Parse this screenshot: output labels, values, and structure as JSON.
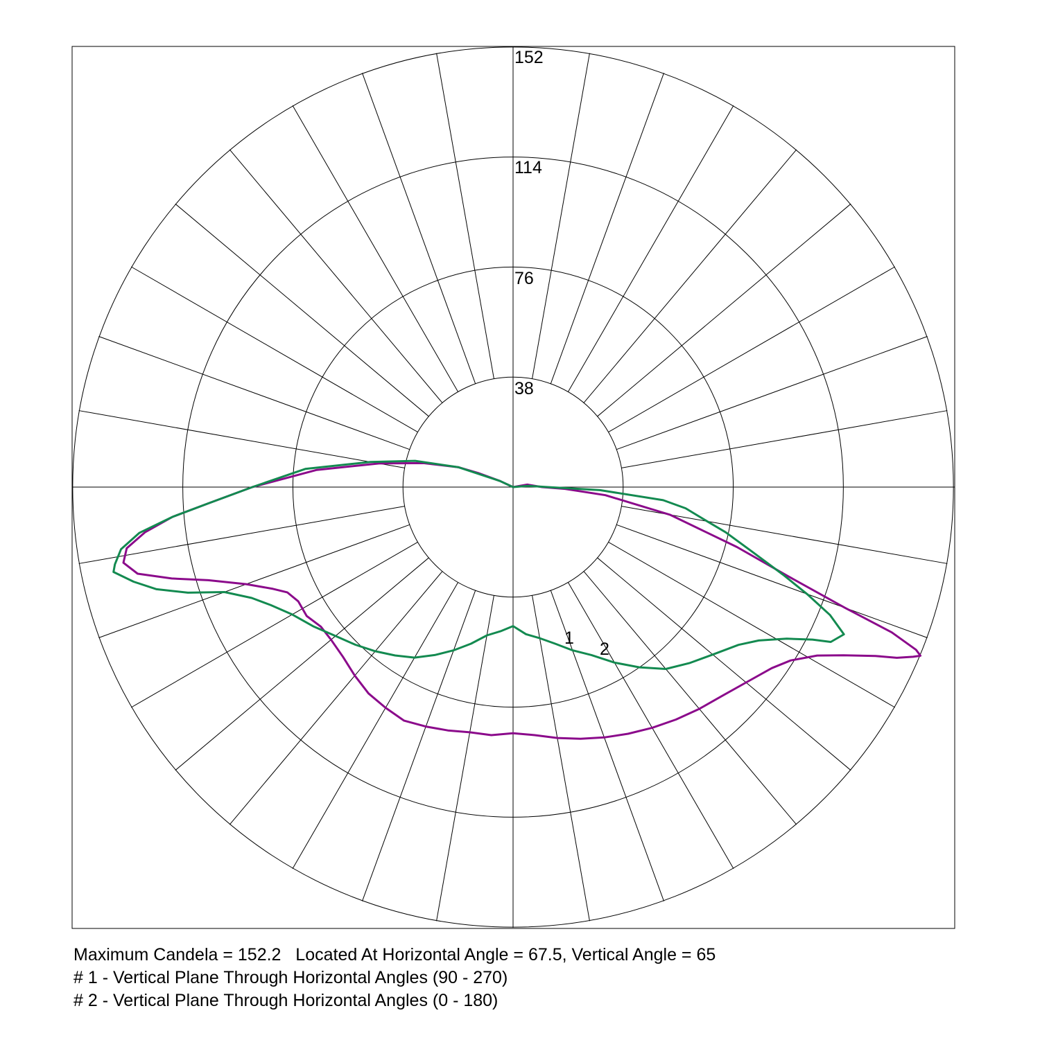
{
  "chart_data": {
    "type": "polar",
    "scale": "candela",
    "max_radius": 152.2,
    "ring_labels": [
      "38",
      "76",
      "114",
      "152"
    ],
    "ring_values": [
      38,
      76,
      114,
      152
    ],
    "spoke_step_deg": 10,
    "grid": true,
    "series": [
      {
        "marker_label": "1",
        "color": "#8b0a8b",
        "description_text": "# 1 - Vertical Plane Through Horizontal Angles (90 - 270)",
        "points": [
          [
            -115,
            5
          ],
          [
            -112,
            13
          ],
          [
            -110,
            20
          ],
          [
            -105,
            32
          ],
          [
            -100,
            47
          ],
          [
            -95,
            68
          ],
          [
            -90,
            90
          ],
          [
            -87,
            105
          ],
          [
            -85,
            118
          ],
          [
            -83,
            128
          ],
          [
            -81,
            135
          ],
          [
            -79,
            137
          ],
          [
            -77,
            133
          ],
          [
            -75,
            122
          ],
          [
            -73,
            110
          ],
          [
            -70,
            98
          ],
          [
            -67,
            90
          ],
          [
            -65,
            86
          ],
          [
            -62,
            84
          ],
          [
            -58,
            84
          ],
          [
            -54,
            82
          ],
          [
            -50,
            82
          ],
          [
            -45,
            83
          ],
          [
            -40,
            85
          ],
          [
            -35,
            87
          ],
          [
            -30,
            88
          ],
          [
            -25,
            89
          ],
          [
            -20,
            88
          ],
          [
            -15,
            87
          ],
          [
            -10,
            86
          ],
          [
            -5,
            86
          ],
          [
            0,
            85
          ],
          [
            5,
            86
          ],
          [
            10,
            88
          ],
          [
            15,
            90
          ],
          [
            20,
            92
          ],
          [
            25,
            94
          ],
          [
            30,
            96
          ],
          [
            35,
            98
          ],
          [
            40,
            100
          ],
          [
            45,
            102
          ],
          [
            50,
            105
          ],
          [
            55,
            109
          ],
          [
            58,
            113
          ],
          [
            61,
            120
          ],
          [
            63,
            128
          ],
          [
            65,
            138
          ],
          [
            66,
            145
          ],
          [
            67,
            150
          ],
          [
            67.5,
            152.2
          ],
          [
            68,
            150
          ],
          [
            69,
            140
          ],
          [
            70,
            122
          ],
          [
            72,
            100
          ],
          [
            75,
            80
          ],
          [
            80,
            55
          ],
          [
            85,
            32
          ],
          [
            88,
            18
          ],
          [
            90,
            10
          ],
          [
            100,
            5
          ]
        ]
      },
      {
        "marker_label": "2",
        "color": "#138a50",
        "description_text": "# 2 - Vertical Plane Through Horizontal Angles (0 - 180)",
        "points": [
          [
            -115,
            5
          ],
          [
            -110,
            20
          ],
          [
            -105,
            35
          ],
          [
            -100,
            50
          ],
          [
            -95,
            72
          ],
          [
            -90,
            90
          ],
          [
            -87,
            105
          ],
          [
            -85,
            118
          ],
          [
            -83,
            130
          ],
          [
            -81,
            137
          ],
          [
            -79,
            140
          ],
          [
            -78,
            141
          ],
          [
            -76,
            135
          ],
          [
            -74,
            128
          ],
          [
            -72,
            118
          ],
          [
            -70,
            106
          ],
          [
            -67,
            98
          ],
          [
            -64,
            93
          ],
          [
            -60,
            88
          ],
          [
            -55,
            84
          ],
          [
            -50,
            80
          ],
          [
            -45,
            77
          ],
          [
            -40,
            74
          ],
          [
            -35,
            71
          ],
          [
            -30,
            68
          ],
          [
            -25,
            64
          ],
          [
            -20,
            60
          ],
          [
            -15,
            56
          ],
          [
            -10,
            52
          ],
          [
            -5,
            50
          ],
          [
            0,
            48
          ],
          [
            5,
            51
          ],
          [
            10,
            53
          ],
          [
            15,
            56
          ],
          [
            20,
            60
          ],
          [
            25,
            64
          ],
          [
            30,
            70
          ],
          [
            35,
            76
          ],
          [
            40,
            82
          ],
          [
            45,
            86
          ],
          [
            50,
            90
          ],
          [
            55,
            95
          ],
          [
            58,
            100
          ],
          [
            61,
            108
          ],
          [
            63,
            116
          ],
          [
            64,
            122
          ],
          [
            66,
            125
          ],
          [
            68,
            118
          ],
          [
            70,
            108
          ],
          [
            72,
            98
          ],
          [
            75,
            85
          ],
          [
            78,
            75
          ],
          [
            80,
            68
          ],
          [
            83,
            60
          ],
          [
            85,
            52
          ],
          [
            88,
            30
          ],
          [
            90,
            12
          ],
          [
            95,
            5
          ]
        ]
      }
    ]
  },
  "caption": {
    "max_line": "Maximum Candela = 152.2   Located At Horizontal Angle = 67.5, Vertical Angle = 65",
    "line_1": "# 1 - Vertical Plane Through Horizontal Angles (90 - 270)",
    "line_2": "# 2 - Vertical Plane Through Horizontal Angles (0 - 180)"
  },
  "curve_labels": {
    "label_1": "1",
    "label_2": "2"
  }
}
